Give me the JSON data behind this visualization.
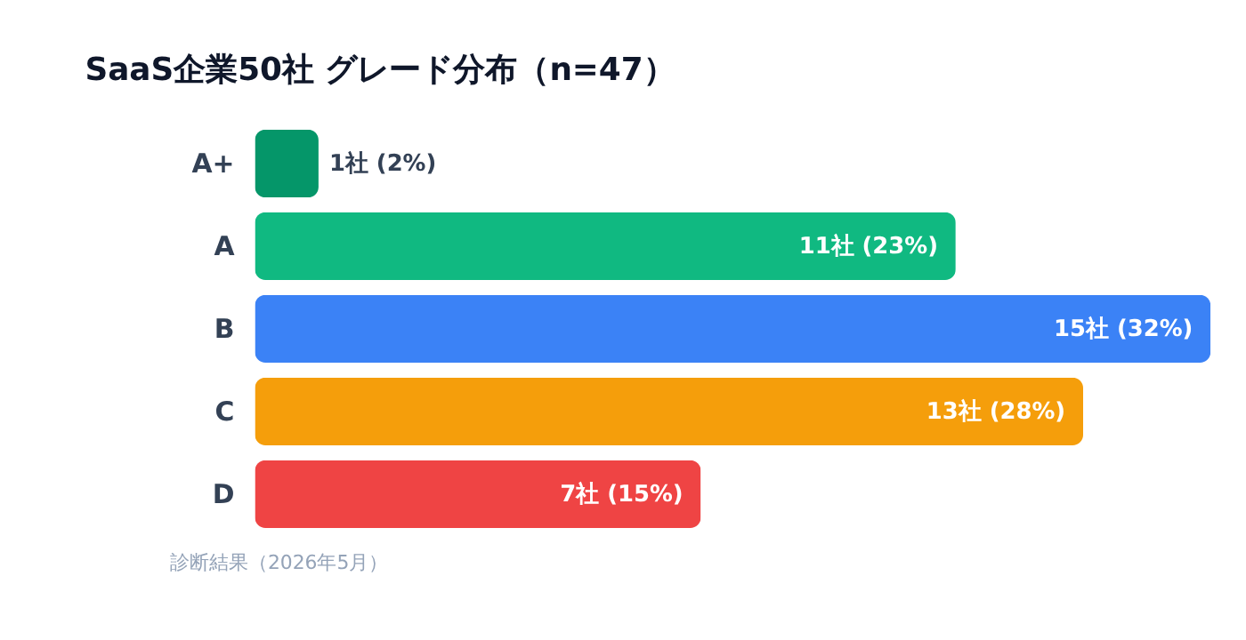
{
  "chart_data": {
    "type": "bar",
    "orientation": "horizontal",
    "title": "SaaS企業50社 グレード分布（n=47）",
    "categories": [
      "A+",
      "A",
      "B",
      "C",
      "D"
    ],
    "values": [
      1,
      11,
      15,
      13,
      7
    ],
    "colors": [
      "#059669",
      "#10b981",
      "#3b82f6",
      "#f59e0b",
      "#ef4444"
    ],
    "value_labels": [
      "1社 (2%)",
      "11社 (23%)",
      "15社 (32%)",
      "13社 (28%)",
      "7社 (15%)"
    ],
    "xlim": [
      0,
      15
    ],
    "annotations": [
      "診断結果（2026年5月）"
    ]
  }
}
